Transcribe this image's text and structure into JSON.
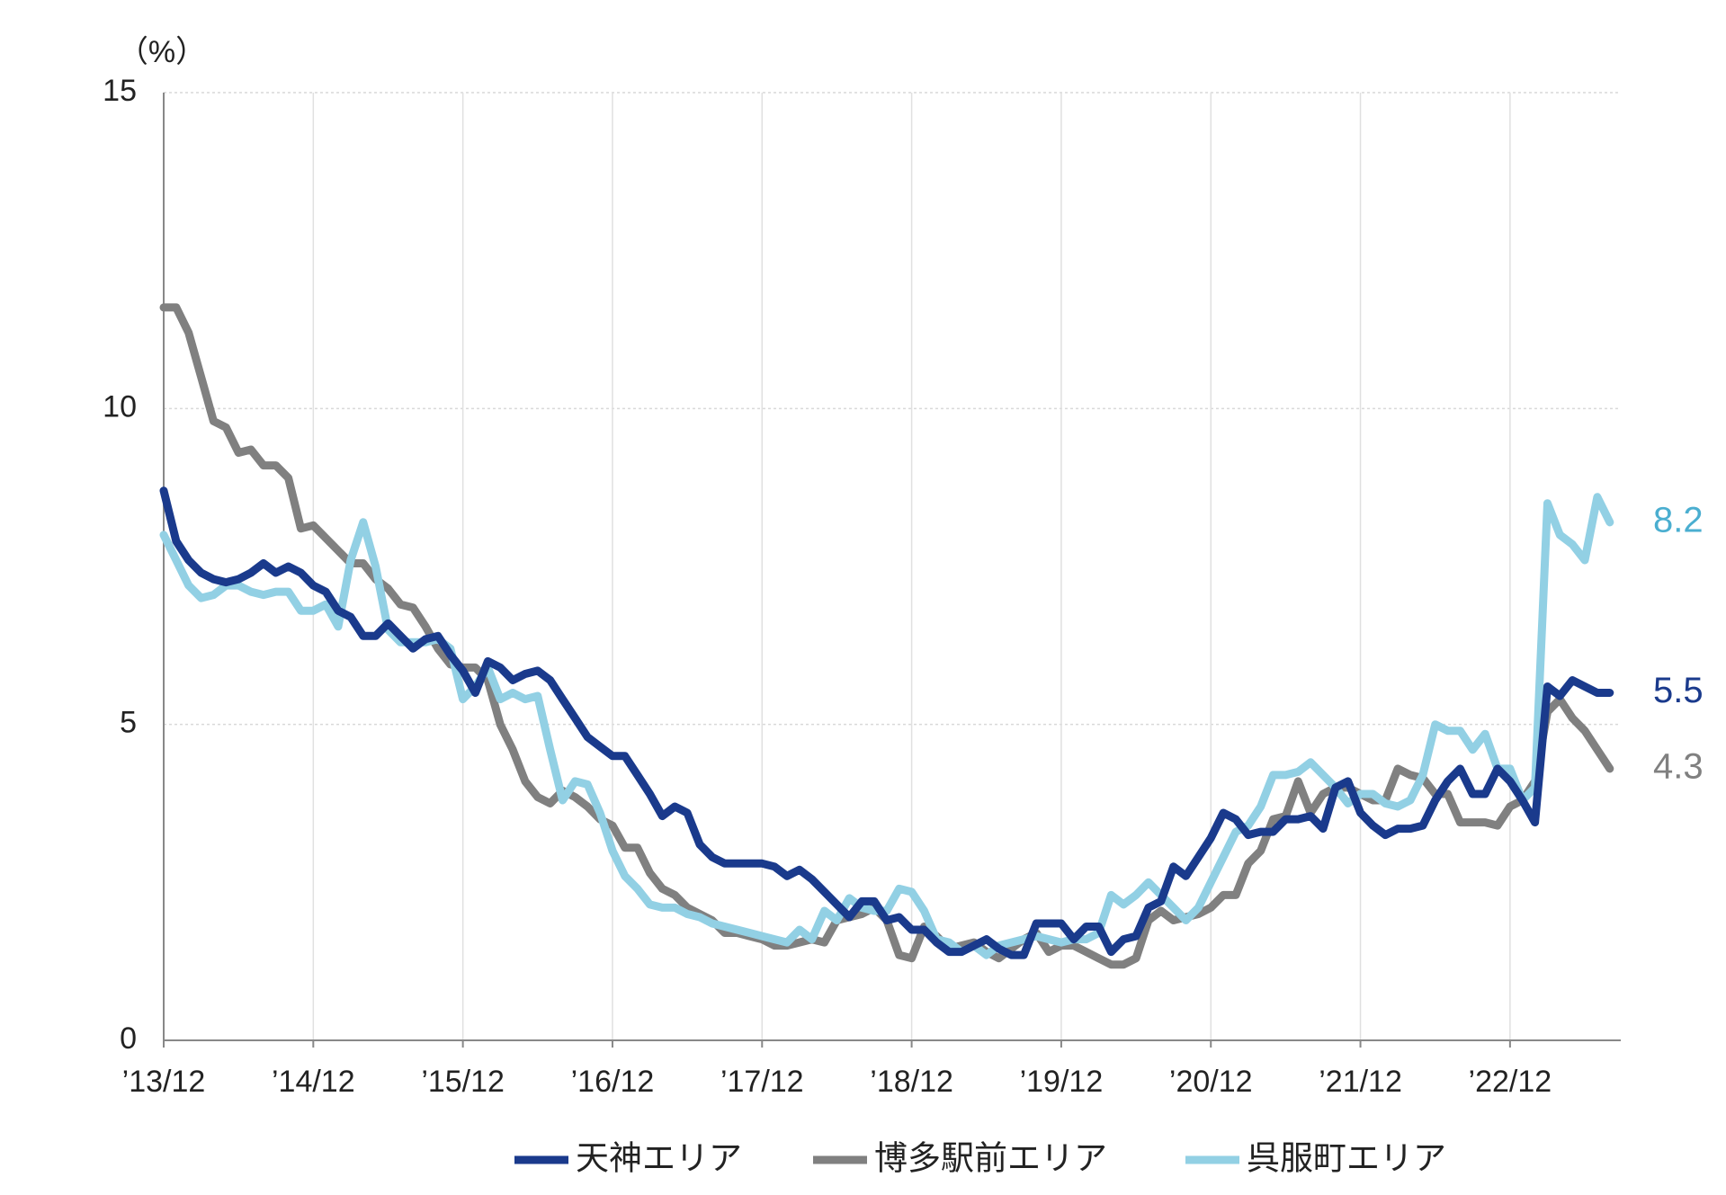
{
  "chart_data": {
    "type": "line",
    "y_label": "（%）",
    "categories": [
      "’13/12",
      null,
      null,
      null,
      null,
      null,
      null,
      null,
      null,
      null,
      null,
      null,
      "’14/12",
      null,
      null,
      null,
      null,
      null,
      null,
      null,
      null,
      null,
      null,
      null,
      "’15/12",
      null,
      null,
      null,
      null,
      null,
      null,
      null,
      null,
      null,
      null,
      null,
      "’16/12",
      null,
      null,
      null,
      null,
      null,
      null,
      null,
      null,
      null,
      null,
      null,
      "’17/12",
      null,
      null,
      null,
      null,
      null,
      null,
      null,
      null,
      null,
      null,
      null,
      "’18/12",
      null,
      null,
      null,
      null,
      null,
      null,
      null,
      null,
      null,
      null,
      null,
      "’19/12",
      null,
      null,
      null,
      null,
      null,
      null,
      null,
      null,
      null,
      null,
      null,
      "’20/12",
      null,
      null,
      null,
      null,
      null,
      null,
      null,
      null,
      null,
      null,
      null,
      "’21/12",
      null,
      null,
      null,
      null,
      null,
      null,
      null,
      null,
      null,
      null,
      null,
      "’22/12",
      null,
      null,
      null,
      null,
      null,
      null,
      null,
      null
    ],
    "series": [
      {
        "name": "天神エリア",
        "color": "#1a3a8c",
        "values": [
          8.7,
          7.9,
          7.6,
          7.4,
          7.3,
          7.25,
          7.3,
          7.4,
          7.55,
          7.4,
          7.5,
          7.4,
          7.2,
          7.1,
          6.8,
          6.7,
          6.4,
          6.4,
          6.6,
          6.4,
          6.2,
          6.35,
          6.4,
          6.1,
          5.85,
          5.5,
          6.0,
          5.9,
          5.7,
          5.8,
          5.85,
          5.7,
          5.4,
          5.1,
          4.8,
          4.65,
          4.5,
          4.5,
          4.2,
          3.9,
          3.55,
          3.7,
          3.6,
          3.1,
          2.9,
          2.8,
          2.8,
          2.8,
          2.8,
          2.75,
          2.6,
          2.7,
          2.55,
          2.35,
          2.15,
          1.95,
          2.2,
          2.2,
          1.9,
          1.95,
          1.75,
          1.75,
          1.55,
          1.4,
          1.4,
          1.5,
          1.6,
          1.45,
          1.35,
          1.35,
          1.85,
          1.85,
          1.85,
          1.6,
          1.8,
          1.8,
          1.4,
          1.6,
          1.65,
          2.1,
          2.2,
          2.75,
          2.6,
          2.9,
          3.2,
          3.6,
          3.5,
          3.25,
          3.3,
          3.3,
          3.5,
          3.5,
          3.55,
          3.35,
          4.0,
          4.1,
          3.6,
          3.4,
          3.25,
          3.35,
          3.35,
          3.4,
          3.8,
          4.1,
          4.3,
          3.9,
          3.9,
          4.3,
          4.1,
          3.8,
          3.45,
          5.6,
          5.45,
          5.7,
          5.6,
          5.5,
          5.5
        ]
      },
      {
        "name": "博多駅前エリア",
        "color": "#808080",
        "values": [
          11.6,
          11.6,
          11.2,
          10.5,
          9.8,
          9.7,
          9.3,
          9.35,
          9.1,
          9.1,
          8.9,
          8.1,
          8.15,
          7.95,
          7.75,
          7.55,
          7.55,
          7.3,
          7.15,
          6.9,
          6.85,
          6.55,
          6.2,
          5.95,
          5.9,
          5.9,
          5.7,
          5.0,
          4.6,
          4.1,
          3.85,
          3.75,
          3.95,
          3.85,
          3.7,
          3.5,
          3.4,
          3.05,
          3.05,
          2.65,
          2.4,
          2.3,
          2.1,
          2.0,
          1.9,
          1.7,
          1.7,
          1.65,
          1.6,
          1.5,
          1.5,
          1.55,
          1.6,
          1.55,
          1.9,
          1.95,
          2.0,
          2.1,
          1.9,
          1.35,
          1.3,
          1.8,
          1.65,
          1.45,
          1.5,
          1.55,
          1.4,
          1.3,
          1.45,
          1.6,
          1.7,
          1.4,
          1.5,
          1.5,
          1.4,
          1.3,
          1.2,
          1.2,
          1.3,
          1.9,
          2.05,
          1.9,
          1.95,
          2.0,
          2.1,
          2.3,
          2.3,
          2.8,
          3.0,
          3.5,
          3.55,
          4.1,
          3.6,
          3.9,
          4.0,
          4.0,
          3.9,
          3.8,
          3.8,
          4.3,
          4.2,
          4.15,
          3.9,
          3.9,
          3.45,
          3.45,
          3.45,
          3.4,
          3.7,
          3.8,
          4.1,
          5.2,
          5.4,
          5.1,
          4.9,
          4.6,
          4.3
        ]
      },
      {
        "name": "呉服町エリア",
        "color": "#92d0e4",
        "values": [
          8.0,
          7.6,
          7.2,
          7.0,
          7.05,
          7.2,
          7.2,
          7.1,
          7.05,
          7.1,
          7.1,
          6.8,
          6.8,
          6.9,
          6.55,
          7.6,
          8.2,
          7.5,
          6.5,
          6.3,
          6.3,
          6.3,
          6.35,
          6.2,
          5.4,
          5.6,
          5.9,
          5.4,
          5.5,
          5.4,
          5.45,
          4.6,
          3.8,
          4.1,
          4.05,
          3.6,
          3.0,
          2.6,
          2.4,
          2.15,
          2.1,
          2.1,
          2.0,
          1.95,
          1.85,
          1.8,
          1.75,
          1.7,
          1.65,
          1.6,
          1.55,
          1.75,
          1.6,
          2.05,
          1.9,
          2.25,
          2.1,
          2.05,
          2.05,
          2.4,
          2.35,
          2.05,
          1.6,
          1.55,
          1.4,
          1.5,
          1.35,
          1.5,
          1.55,
          1.6,
          1.65,
          1.6,
          1.55,
          1.6,
          1.6,
          1.7,
          2.3,
          2.15,
          2.3,
          2.5,
          2.3,
          2.1,
          1.9,
          2.1,
          2.5,
          2.9,
          3.3,
          3.4,
          3.7,
          4.2,
          4.2,
          4.25,
          4.4,
          4.2,
          4.0,
          3.75,
          3.9,
          3.9,
          3.75,
          3.7,
          3.8,
          4.2,
          5.0,
          4.9,
          4.9,
          4.6,
          4.85,
          4.3,
          4.3,
          3.8,
          4.0,
          8.5,
          8.0,
          7.85,
          7.6,
          8.6,
          8.2
        ]
      }
    ],
    "end_label_colors": [
      "#1a3a8c",
      "#808080",
      "#4aaed0"
    ],
    "ylim": [
      0,
      15
    ],
    "yticks": [
      0,
      5,
      10,
      15
    ],
    "grid": true,
    "legend": "bottom"
  }
}
